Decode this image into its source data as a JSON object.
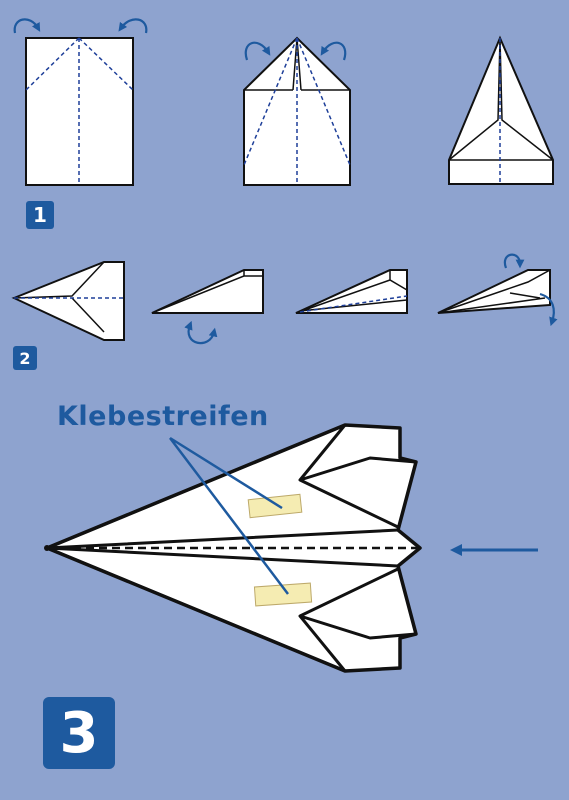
{
  "steps": {
    "step1": "1",
    "step2": "2",
    "step3": "3"
  },
  "annotation": {
    "tape_label": "Klebestreifen"
  },
  "colors": {
    "background": "#8ea3cf",
    "paper": "#ffffff",
    "outline": "#111111",
    "fold_line": "#1e3f99",
    "accent": "#1e5a9f",
    "tape": "#f5ecb2"
  },
  "icons": {
    "fold_arrow": "curved-fold-arrow-icon",
    "direction_arrow": "throw-direction-arrow-icon"
  }
}
